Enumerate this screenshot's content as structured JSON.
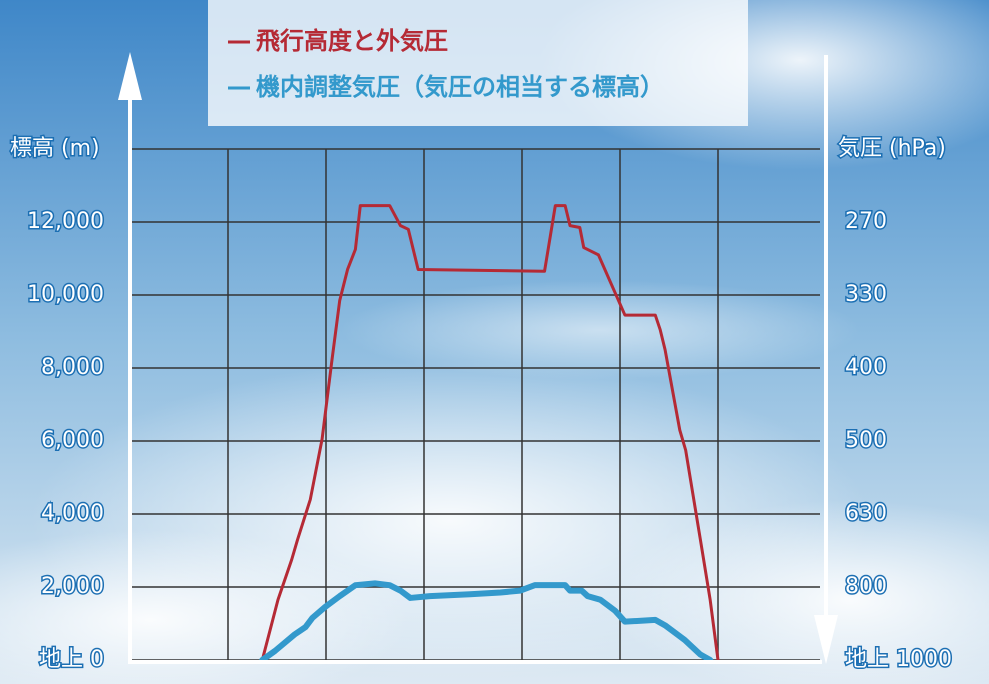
{
  "chart_data": {
    "type": "line",
    "ylabel": "標高 (m)",
    "y2label": "気圧 (hPa)",
    "xlim": [
      0,
      7
    ],
    "xticks": [
      1,
      2,
      3,
      4,
      5,
      6
    ],
    "ylim": [
      0,
      14000
    ],
    "yticks": [
      {
        "value": 0,
        "label": "地上 0"
      },
      {
        "value": 2000,
        "label": "2,000"
      },
      {
        "value": 4000,
        "label": "4,000"
      },
      {
        "value": 6000,
        "label": "6,000"
      },
      {
        "value": 8000,
        "label": "8,000"
      },
      {
        "value": 10000,
        "label": "10,000"
      },
      {
        "value": 12000,
        "label": "12,000"
      }
    ],
    "y2ticks": [
      {
        "value": 1000,
        "label": "地上 1000"
      },
      800,
      630,
      500,
      400,
      330,
      270
    ],
    "grid": true,
    "series": [
      {
        "name": "飛行高度と外気圧",
        "color": "#b52a35",
        "x": [
          1.35,
          1.51,
          1.65,
          1.71,
          1.84,
          1.96,
          2.06,
          2.14,
          2.22,
          2.3,
          2.35,
          2.65,
          2.76,
          2.84,
          2.94,
          4.23,
          4.34,
          4.44,
          4.49,
          4.59,
          4.63,
          4.78,
          5.05,
          5.36,
          5.41,
          5.46,
          5.61,
          5.67,
          5.82,
          5.92,
          6.0
        ],
        "values": [
          0,
          1650,
          2750,
          3300,
          4400,
          6050,
          8200,
          9850,
          10700,
          11250,
          12450,
          12450,
          11900,
          11800,
          10700,
          10650,
          12450,
          12450,
          11900,
          11850,
          11300,
          11100,
          9450,
          9450,
          9050,
          8500,
          6300,
          5750,
          3300,
          1650,
          0
        ]
      },
      {
        "name": "機内調整気圧（気圧の相当する標高）",
        "color": "#3399cc",
        "x": [
          1.35,
          1.48,
          1.68,
          1.79,
          1.86,
          1.99,
          2.14,
          2.3,
          2.5,
          2.65,
          2.76,
          2.86,
          3.06,
          3.47,
          3.78,
          3.98,
          4.13,
          4.44,
          4.49,
          4.61,
          4.67,
          4.8,
          4.95,
          5.05,
          5.36,
          5.46,
          5.66,
          5.82,
          5.92
        ],
        "values": [
          0,
          250,
          700,
          900,
          1150,
          1450,
          1750,
          2050,
          2100,
          2050,
          1900,
          1700,
          1750,
          1800,
          1850,
          1900,
          2050,
          2050,
          1900,
          1900,
          1750,
          1650,
          1350,
          1050,
          1100,
          950,
          550,
          150,
          0
        ]
      }
    ]
  }
}
